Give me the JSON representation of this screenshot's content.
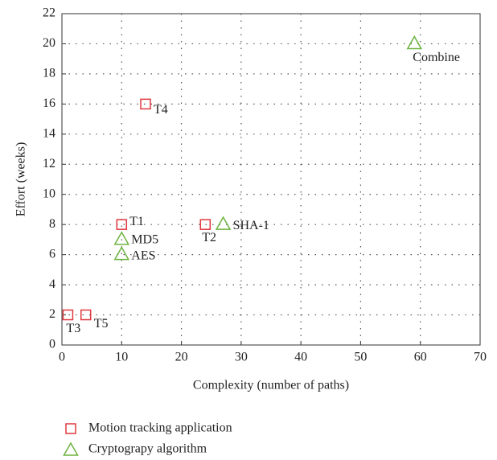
{
  "chart_data": {
    "type": "scatter",
    "xlabel": "Complexity (number of paths)",
    "ylabel": "Effort (weeks)",
    "xlim": [
      0,
      70
    ],
    "xticks": [
      0,
      10,
      20,
      30,
      40,
      50,
      60,
      70
    ],
    "ylim": [
      0,
      22
    ],
    "yticks": [
      0,
      2,
      4,
      6,
      8,
      10,
      12,
      14,
      16,
      18,
      20,
      22
    ],
    "grid": true,
    "legend": "bottom-left",
    "series": [
      {
        "name": "Motion tracking application",
        "color": "#e0393e",
        "marker": "square",
        "labels": [
          "T1",
          "T2",
          "T3",
          "T4",
          "T5"
        ],
        "x": [
          10,
          24,
          1,
          14,
          4
        ],
        "values": [
          8,
          8,
          2,
          16,
          2
        ]
      },
      {
        "name": "Cryptograpy algorithm",
        "color": "#6db33f",
        "marker": "triangle",
        "labels": [
          "MD5",
          "AES",
          "SHA-1",
          "Combine"
        ],
        "x": [
          10,
          10,
          27,
          59
        ],
        "values": [
          7,
          6,
          8,
          20
        ]
      }
    ]
  }
}
